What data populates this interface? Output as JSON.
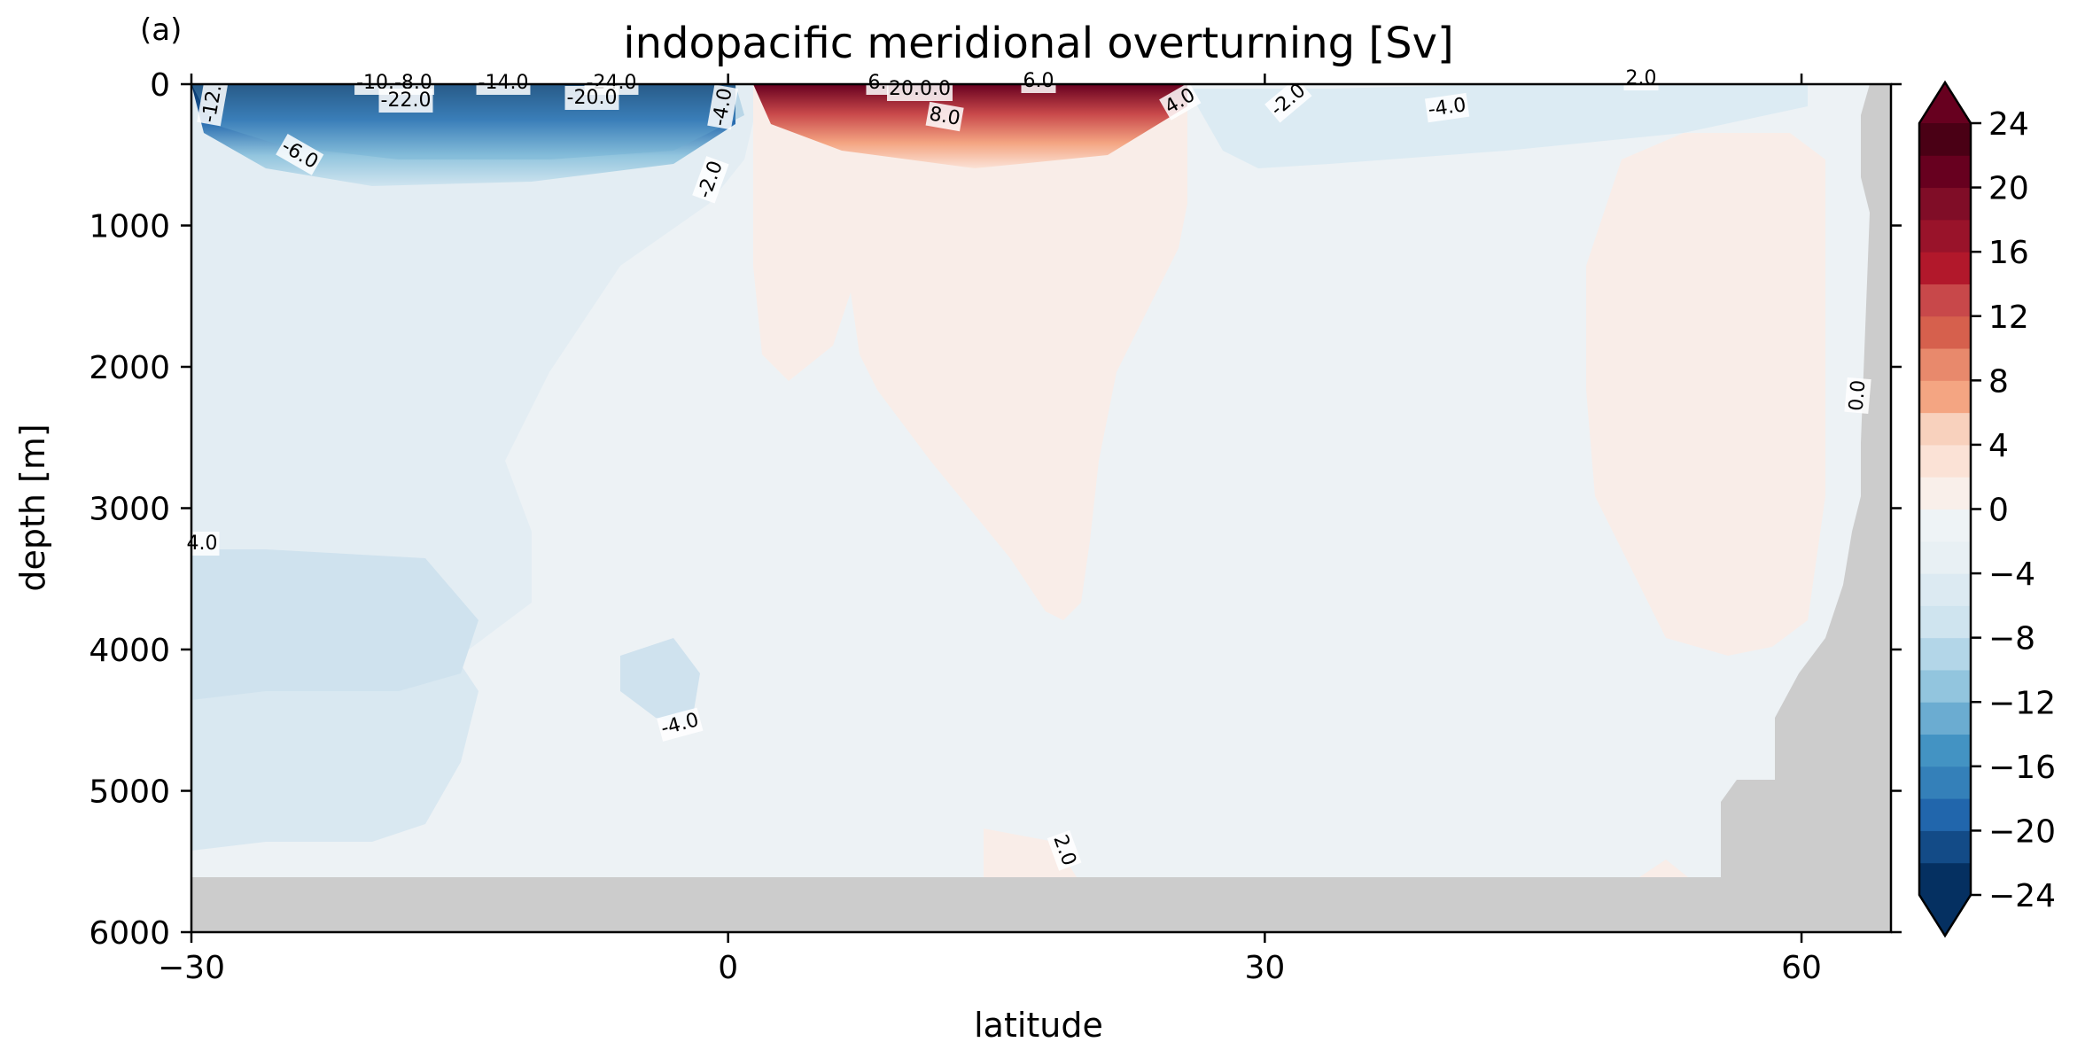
{
  "chart_data": {
    "type": "heatmap",
    "panel_label": "(a)",
    "title": "indopacific meridional overturning [Sv]",
    "xlabel": "latitude",
    "ylabel": "depth [m]",
    "xlim": [
      -30,
      65
    ],
    "ylim": [
      6000,
      0
    ],
    "x_ticks": [
      -30,
      0,
      30,
      60
    ],
    "x_tick_labels": [
      "−30",
      "0",
      "30",
      "60"
    ],
    "y_ticks": [
      0,
      1000,
      2000,
      3000,
      4000,
      5000,
      6000
    ],
    "y_tick_labels": [
      "0",
      "1000",
      "2000",
      "3000",
      "4000",
      "5000",
      "6000"
    ],
    "colormap": "RdBu_r",
    "colorbar": {
      "range": [
        -24,
        24
      ],
      "extend": "both",
      "ticks": [
        24,
        20,
        16,
        12,
        8,
        4,
        0,
        -4,
        -8,
        -12,
        -16,
        -20,
        -24
      ],
      "tick_labels": [
        "24",
        "20",
        "16",
        "12",
        "8",
        "4",
        "0",
        "−4",
        "−8",
        "−12",
        "−16",
        "−20",
        "−24"
      ],
      "levels": [
        -24,
        -22,
        -20,
        -18,
        -16,
        -14,
        -12,
        -10,
        -8,
        -6,
        -4,
        -2,
        0,
        2,
        4,
        6,
        8,
        10,
        12,
        14,
        16,
        18,
        20,
        22,
        24
      ],
      "colors": [
        "#053061",
        "#134b87",
        "#2166ac",
        "#3480b9",
        "#4393c3",
        "#6bacd1",
        "#92c5de",
        "#b3d6e8",
        "#cfe4ef",
        "#dceaf2",
        "#e8f0f4",
        "#eef3f6",
        "#f9efea",
        "#fbe2d6",
        "#f8d1bd",
        "#f4a582",
        "#e8896c",
        "#d6604d",
        "#c8484a",
        "#b2182b",
        "#99132a",
        "#800d27",
        "#67001f",
        "#4a0015"
      ]
    },
    "contour_labels": [
      "-12.",
      "-10.-8.0",
      "-14.0",
      "-24.0",
      "-22.0",
      "-20.0",
      "-6.0",
      "-4.0",
      "-2.0",
      "6.",
      "20.0.0",
      "8.0",
      "6.0",
      "4.0",
      "-2.0",
      "-4.0",
      "2.0",
      "0.0",
      "4.0",
      "-4.0",
      "2.0"
    ],
    "mask_color": "#cccccc"
  }
}
